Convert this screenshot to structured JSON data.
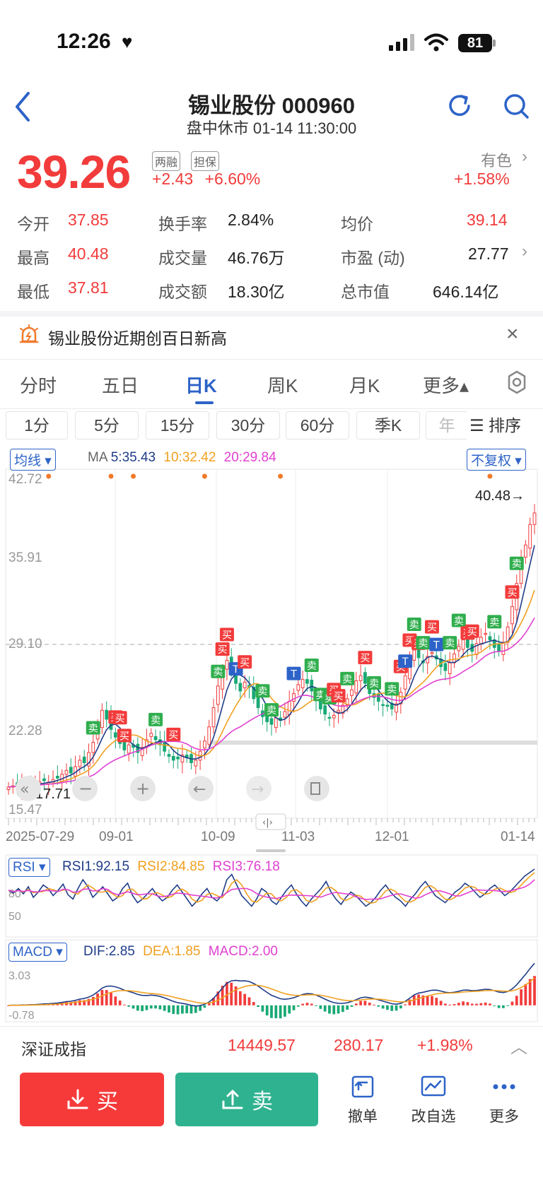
{
  "status": {
    "time": "12:26",
    "battery": "81"
  },
  "header": {
    "title": "锡业股份 000960",
    "subtitle": "盘中休市 01-14 11:30:00"
  },
  "quote": {
    "price": "39.26",
    "tags": [
      "两融",
      "担保"
    ],
    "change": "+2.43",
    "change_pct": "+6.60%",
    "sector": "有色",
    "sector_change": "+1.58%"
  },
  "stats": [
    {
      "label": "今开",
      "value": "37.85",
      "color": "#f23b3b"
    },
    {
      "label": "换手率",
      "value": "2.84%",
      "color": "#222222"
    },
    {
      "label": "均价",
      "value": "39.14",
      "color": "#f23b3b"
    },
    {
      "label": "最高",
      "value": "40.48",
      "color": "#f23b3b"
    },
    {
      "label": "成交量",
      "value": "46.76万",
      "color": "#222222"
    },
    {
      "label": "市盈 (动)",
      "value": "27.77",
      "color": "#222222"
    },
    {
      "label": "最低",
      "value": "37.81",
      "color": "#f23b3b"
    },
    {
      "label": "成交额",
      "value": "18.30亿",
      "color": "#222222"
    },
    {
      "label": "总市值",
      "value": "646.14亿",
      "color": "#222222"
    }
  ],
  "notice": {
    "text": "锡业股份近期创百日新高"
  },
  "period_tabs": [
    "分时",
    "五日",
    "日K",
    "周K",
    "月K",
    "更多▴"
  ],
  "active_period": 2,
  "interval_tabs": [
    "1分",
    "5分",
    "15分",
    "30分",
    "60分",
    "季K",
    "年"
  ],
  "sort_label": "排序",
  "chart_controls": {
    "ma_selector": "均线 ▾",
    "adjust_selector": "不复权 ▾",
    "rsi_selector": "RSI ▾",
    "macd_selector": "MACD ▾"
  },
  "indicators": {
    "ma": {
      "prefix": "MA",
      "ma5": "5:35.43",
      "ma10": "10:32.42",
      "ma20": "20:29.84"
    },
    "rsi": {
      "rsi1": "RSI1:92.15",
      "rsi2": "RSI2:84.85",
      "rsi3": "RSI3:76.18"
    },
    "macd": {
      "dif": "DIF:2.85",
      "dea": "DEA:1.85",
      "macd": "MACD:2.00"
    }
  },
  "chart_data": {
    "type": "candlestick",
    "price_axis_ticks": [
      "42.72",
      "35.91",
      "29.10",
      "22.28",
      "15.47"
    ],
    "ylim": [
      15.47,
      42.72
    ],
    "x_ticks": [
      "2025-07-29",
      "09-01",
      "10-09",
      "11-03",
      "12-01",
      "01-14"
    ],
    "high_label": "40.48→",
    "low_label": "17.71",
    "current_price_line": 29.1,
    "close_series": [
      17.9,
      18.0,
      17.9,
      18.1,
      18.0,
      18.2,
      18.1,
      18.3,
      18.4,
      18.3,
      18.5,
      18.6,
      18.9,
      19.2,
      19.0,
      19.5,
      20.0,
      19.8,
      20.6,
      21.4,
      22.8,
      23.9,
      23.2,
      22.4,
      21.8,
      21.3,
      20.8,
      21.2,
      21.0,
      20.6,
      21.0,
      21.6,
      22.1,
      21.6,
      21.2,
      20.7,
      20.3,
      20.0,
      20.1,
      20.4,
      20.2,
      19.8,
      20.0,
      20.7,
      21.5,
      22.6,
      24.1,
      25.8,
      27.1,
      27.8,
      26.9,
      26.0,
      25.4,
      26.1,
      25.7,
      24.8,
      24.1,
      23.4,
      23.0,
      22.8,
      23.3,
      23.1,
      23.8,
      24.6,
      25.2,
      25.9,
      26.3,
      26.0,
      25.4,
      24.7,
      24.0,
      23.6,
      23.3,
      23.5,
      23.9,
      24.3,
      24.8,
      25.5,
      26.2,
      26.6,
      26.0,
      25.2,
      24.9,
      24.6,
      24.3,
      24.2,
      24.0,
      24.4,
      25.3,
      26.6,
      27.8,
      28.6,
      28.0,
      27.6,
      28.1,
      28.4,
      27.9,
      27.3,
      27.0,
      27.6,
      28.3,
      28.9,
      29.4,
      28.8,
      28.5,
      29.1,
      29.6,
      29.9,
      29.4,
      28.8,
      28.5,
      29.2,
      30.4,
      32.0,
      33.8,
      35.6,
      36.8,
      38.4,
      39.3
    ],
    "rsi_series": [
      68,
      65,
      70,
      64,
      72,
      60,
      66,
      74,
      70,
      62,
      68,
      75,
      63,
      58,
      70,
      80,
      72,
      60,
      66,
      72,
      64,
      56,
      60,
      70,
      76,
      62,
      54,
      58,
      64,
      70,
      62,
      56,
      60,
      68,
      74,
      66,
      58,
      50,
      56,
      64,
      70,
      60,
      56,
      62,
      80,
      86,
      74,
      62,
      56,
      50,
      58,
      70,
      66,
      56,
      52,
      60,
      68,
      74,
      64,
      56,
      50,
      58,
      64,
      70,
      78,
      66,
      58,
      52,
      60,
      66,
      62,
      56,
      50,
      54,
      60,
      68,
      74,
      66,
      60,
      56,
      50,
      58,
      64,
      72,
      78,
      70,
      62,
      58,
      54,
      60,
      66,
      70,
      76,
      72,
      66,
      60,
      64,
      70,
      74,
      68,
      62,
      66,
      72,
      78,
      84,
      88,
      92
    ]
  },
  "index_bar": {
    "name": "深证成指",
    "value": "14449.57",
    "change": "280.17",
    "pct": "+1.98%"
  },
  "actions": {
    "buy": "买",
    "sell": "卖",
    "tools": [
      "撤单",
      "改自选",
      "更多"
    ]
  }
}
